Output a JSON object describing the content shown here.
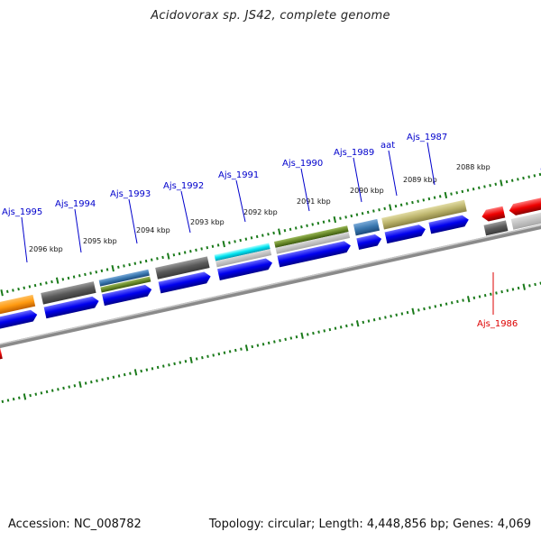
{
  "title": "Acidovorax sp. JS42, complete genome",
  "accession": "Accession: NC_008782",
  "summary": "Topology: circular; Length: 4,448,856 bp; Genes: 4,069",
  "colors": {
    "forward_cds": "#0000ee",
    "reverse_cds": "#ee0000",
    "forward_label": "#0000cc",
    "reverse_label": "#dd0000",
    "tick": "#1a7a1a",
    "backbone": "#808080"
  },
  "kbp_labels": [
    "2096 kbp",
    "2095 kbp",
    "2094 kbp",
    "2093 kbp",
    "2092 kbp",
    "2091 kbp",
    "2090 kbp",
    "2089 kbp",
    "2088 kbp"
  ],
  "gene_labels": [
    {
      "text": "Ajs_1995",
      "strand": "forward"
    },
    {
      "text": "Ajs_1994",
      "strand": "forward"
    },
    {
      "text": "Ajs_1993",
      "strand": "forward"
    },
    {
      "text": "Ajs_1992",
      "strand": "forward"
    },
    {
      "text": "Ajs_1991",
      "strand": "forward"
    },
    {
      "text": "Ajs_1990",
      "strand": "forward"
    },
    {
      "text": "Ajs_1989",
      "strand": "forward"
    },
    {
      "text": "aat",
      "strand": "forward"
    },
    {
      "text": "Ajs_1987",
      "strand": "forward"
    },
    {
      "text": "Ajs_1986",
      "strand": "reverse"
    }
  ]
}
